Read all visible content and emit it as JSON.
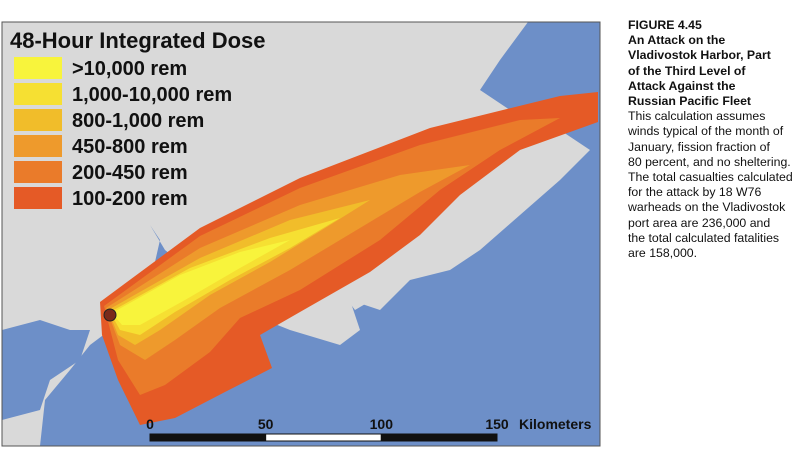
{
  "map": {
    "legend": {
      "title": "48-Hour Integrated Dose",
      "items": [
        {
          "label": ">10,000 rem",
          "color": "#f8f43c"
        },
        {
          "label": "1,000-10,000 rem",
          "color": "#f6e032"
        },
        {
          "label": "800-1,000 rem",
          "color": "#f1bd2a"
        },
        {
          "label": "450-800 rem",
          "color": "#ee9a2c"
        },
        {
          "label": "200-450 rem",
          "color": "#ea7b2a"
        },
        {
          "label": "100-200 rem",
          "color": "#e55a26"
        }
      ]
    },
    "scale": {
      "ticks": [
        0,
        50,
        100,
        150
      ],
      "unit": "Kilometers"
    }
  },
  "caption": {
    "figure": "FIGURE 4.45",
    "title_lines": [
      "An Attack on the",
      "Vladivostok Harbor, Part",
      "of the Third Level of",
      "Attack Against the",
      "Russian Pacific Fleet"
    ],
    "body_lines": [
      "This calculation assumes",
      "winds typical of the month of",
      "January, fission fraction of",
      "80 percent, and no sheltering.",
      "The total casualties calculated",
      "for the attack by 18 W76",
      "warheads on the Vladivostok",
      "port area are 236,000 and",
      "the total calculated fatalities",
      "are 158,000."
    ]
  }
}
